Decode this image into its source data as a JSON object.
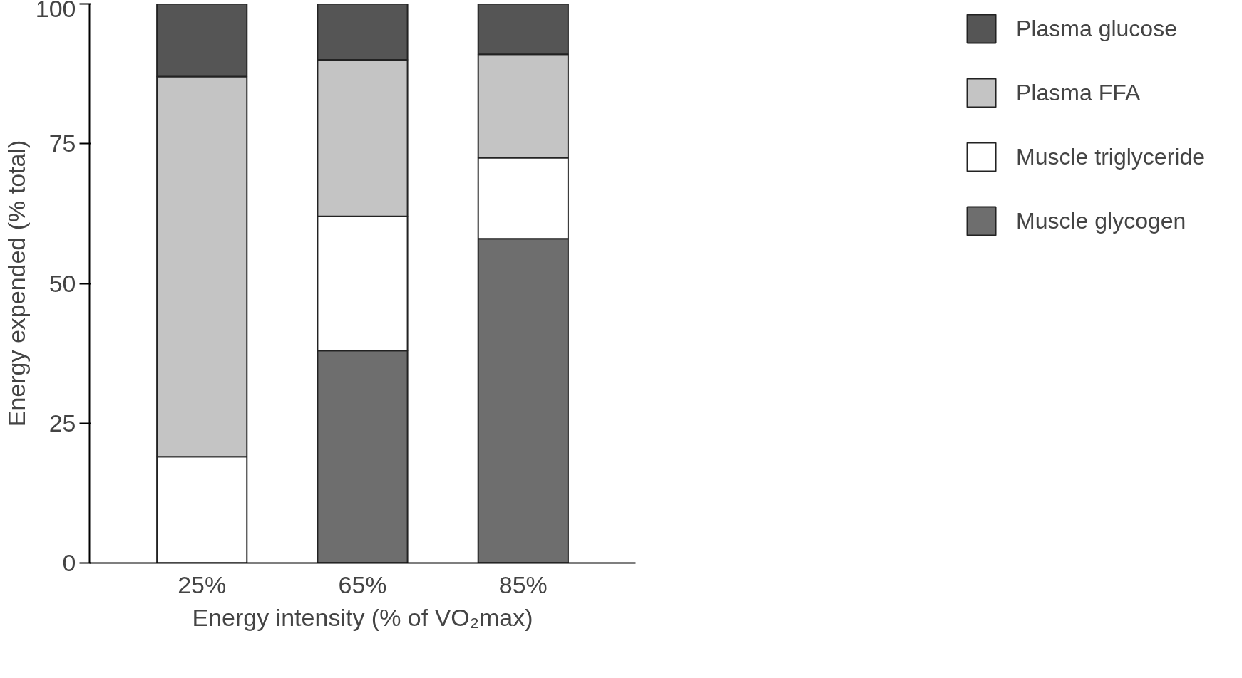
{
  "chart_data": {
    "type": "bar",
    "stacked": true,
    "xlabel": "Energy intensity (% of VO₂max)",
    "ylabel": "Energy expended (% total)",
    "categories": [
      "25%",
      "65%",
      "85%"
    ],
    "series": [
      {
        "name": "Muscle glycogen",
        "color": "#6e6e6e",
        "values": [
          0,
          38,
          58
        ]
      },
      {
        "name": "Muscle triglyceride",
        "color": "#ffffff",
        "values": [
          19,
          24,
          14.5
        ]
      },
      {
        "name": "Plasma FFA",
        "color": "#c4c4c4",
        "values": [
          68,
          28,
          18.5
        ]
      },
      {
        "name": "Plasma glucose",
        "color": "#555555",
        "values": [
          13,
          10,
          9
        ]
      }
    ],
    "ylim": [
      0,
      100
    ],
    "yticks": [
      0,
      25,
      50,
      75,
      100
    ],
    "grid": false,
    "legend": "right"
  }
}
